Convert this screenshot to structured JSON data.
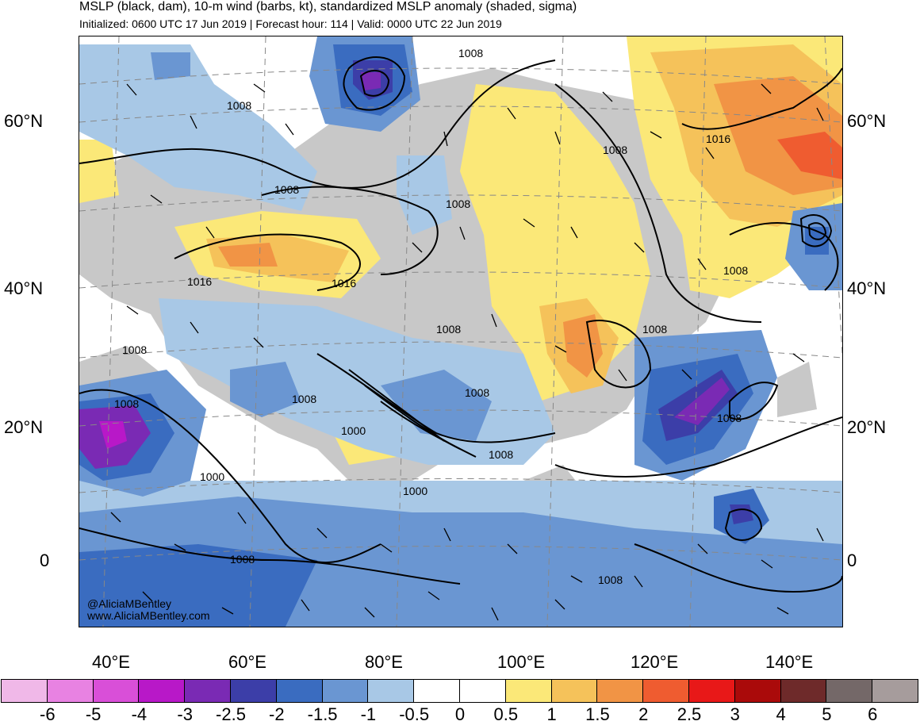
{
  "header": {
    "title": "MSLP (black, dam), 10-m wind (barbs, kt), standardized MSLP anomaly (shaded, sigma)",
    "subtitle": "Initialized: 0600 UTC 17 Jun 2019 | Forecast hour: 114 | Valid: 0000 UTC 22 Jun 2019"
  },
  "map": {
    "lat_labels": [
      "60°N",
      "40°N",
      "20°N",
      "0"
    ],
    "lon_labels": [
      "40°E",
      "60°E",
      "80°E",
      "100°E",
      "120°E",
      "140°E"
    ],
    "contour_labels": [
      "1008",
      "1008",
      "1008",
      "1016",
      "1016",
      "1016",
      "1008",
      "1008",
      "1008",
      "1008",
      "1008",
      "1008",
      "1000",
      "1000",
      "1008",
      "1000",
      "1008",
      "1008",
      "1008",
      "1008",
      "1008",
      "1008"
    ],
    "credits": [
      "@AliciaMBentley",
      "www.AliciaMBentley.com"
    ],
    "land_color": "#c8c8c8",
    "contour_color": "#000000"
  },
  "colorbar": {
    "labels": [
      "-6",
      "-5",
      "-4",
      "-3",
      "-2.5",
      "-2",
      "-1.5",
      "-1",
      "-0.5",
      "0",
      "0.5",
      "1",
      "1.5",
      "2",
      "2.5",
      "3",
      "4",
      "5",
      "6"
    ],
    "colors": [
      "#f0b8e8",
      "#e882e2",
      "#d94fd8",
      "#b818c8",
      "#7a2ab4",
      "#3c3ea8",
      "#3a6cc0",
      "#6a96d2",
      "#a8c8e6",
      "#ffffff",
      "#ffffff",
      "#fbe878",
      "#f5c25a",
      "#f19445",
      "#ef5c30",
      "#e81818",
      "#aa0a0a",
      "#6e2a2a",
      "#746868",
      "#a69c9c"
    ]
  }
}
